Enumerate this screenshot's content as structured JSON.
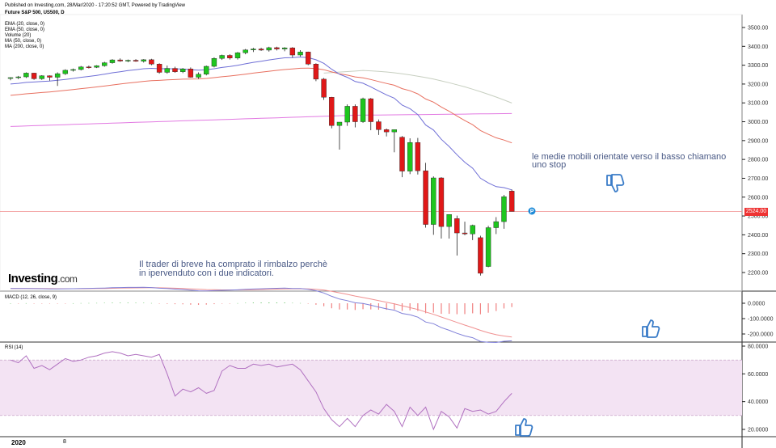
{
  "header": {
    "published": "Published on Investing.com, 28/Mar/2020 - 17:20:52 GMT, Powered by TradingView",
    "symbol": "Future S&P 500, US500, D"
  },
  "indicators_legend": [
    "EMA (20, close, 0)",
    "EMA (50, close, 0)",
    "Volume (20)",
    "MA (50, close, 0)",
    "MA (200, close, 0)"
  ],
  "annotations": {
    "top_right_line1": "le medie mobili orientate verso il basso chiamano",
    "top_right_line2": "uno stop",
    "bottom_left_line1": "Il trader di breve ha comprato il rimbalzo perchè",
    "bottom_left_line2": "in ipervenduto con i due indicatori."
  },
  "logo": {
    "text": "Investing",
    "suffix": ".com"
  },
  "colors": {
    "up": "#1ec61e",
    "down": "#e01818",
    "ema20": "#6f6fd6",
    "ema50": "#e87060",
    "ma50": "#e27ae2",
    "ma200": "#c7cfc0",
    "rsi_line": "#b070c0",
    "rsi_band": "#f3e3f3",
    "macd_line": "#8080d8",
    "signal_line": "#f09090",
    "note_text": "#4a5a86",
    "thumb": "#3a7cc8"
  },
  "icons": [
    "thumb-down-icon",
    "thumb-up-icon",
    "thumb-up-icon"
  ],
  "chart_data": {
    "type": "candlestick",
    "price_axis": {
      "ticks": [
        "3500.00",
        "3400.00",
        "3300.00",
        "3200.00",
        "3100.00",
        "3000.00",
        "2900.00",
        "2800.00",
        "2700.00",
        "2600.00",
        "2500.00",
        "2400.00",
        "2300.00",
        "2200.00"
      ],
      "range": [
        2120,
        3540
      ]
    },
    "last_price": "2524.00",
    "candles": [
      [
        3230,
        3236,
        3220,
        3234
      ],
      [
        3234,
        3243,
        3226,
        3238
      ],
      [
        3238,
        3262,
        3232,
        3258
      ],
      [
        3258,
        3260,
        3222,
        3228
      ],
      [
        3228,
        3247,
        3222,
        3244
      ],
      [
        3244,
        3246,
        3218,
        3236
      ],
      [
        3236,
        3262,
        3190,
        3255
      ],
      [
        3255,
        3278,
        3248,
        3273
      ],
      [
        3273,
        3282,
        3266,
        3277
      ],
      [
        3277,
        3296,
        3272,
        3291
      ],
      [
        3291,
        3298,
        3282,
        3289
      ],
      [
        3289,
        3300,
        3285,
        3297
      ],
      [
        3297,
        3318,
        3292,
        3313
      ],
      [
        3313,
        3332,
        3308,
        3328
      ],
      [
        3328,
        3336,
        3318,
        3322
      ],
      [
        3322,
        3330,
        3316,
        3326
      ],
      [
        3326,
        3332,
        3318,
        3321
      ],
      [
        3321,
        3332,
        3314,
        3329
      ],
      [
        3329,
        3334,
        3300,
        3306
      ],
      [
        3306,
        3310,
        3255,
        3262
      ],
      [
        3262,
        3298,
        3255,
        3283
      ],
      [
        3283,
        3292,
        3260,
        3265
      ],
      [
        3265,
        3285,
        3258,
        3280
      ],
      [
        3280,
        3288,
        3234,
        3236
      ],
      [
        3236,
        3262,
        3228,
        3252
      ],
      [
        3252,
        3298,
        3246,
        3294
      ],
      [
        3294,
        3342,
        3288,
        3336
      ],
      [
        3336,
        3356,
        3328,
        3352
      ],
      [
        3352,
        3358,
        3330,
        3338
      ],
      [
        3338,
        3370,
        3330,
        3366
      ],
      [
        3366,
        3386,
        3358,
        3381
      ],
      [
        3381,
        3392,
        3370,
        3386
      ],
      [
        3386,
        3392,
        3376,
        3380
      ],
      [
        3380,
        3398,
        3372,
        3393
      ],
      [
        3393,
        3398,
        3378,
        3386
      ],
      [
        3386,
        3396,
        3374,
        3392
      ],
      [
        3392,
        3396,
        3340,
        3354
      ],
      [
        3354,
        3380,
        3346,
        3370
      ],
      [
        3370,
        3372,
        3300,
        3306
      ],
      [
        3306,
        3310,
        3215,
        3226
      ],
      [
        3226,
        3232,
        3116,
        3130
      ],
      [
        3130,
        3132,
        2965,
        2980
      ],
      [
        2980,
        2998,
        2852,
        2998
      ],
      [
        2998,
        3092,
        2978,
        3082
      ],
      [
        3082,
        3092,
        2970,
        3000
      ],
      [
        3000,
        3128,
        2994,
        3122
      ],
      [
        3122,
        3126,
        2955,
        3000
      ],
      [
        3000,
        3012,
        2930,
        2958
      ],
      [
        2958,
        2964,
        2922,
        2946
      ],
      [
        2946,
        2950,
        2838,
        2958
      ],
      [
        2918,
        2924,
        2706,
        2738
      ],
      [
        2738,
        2912,
        2722,
        2890
      ],
      [
        2890,
        2914,
        2720,
        2740
      ],
      [
        2740,
        2782,
        2438,
        2455
      ],
      [
        2455,
        2710,
        2400,
        2702
      ],
      [
        2702,
        2706,
        2380,
        2444
      ],
      [
        2444,
        2508,
        2380,
        2508
      ],
      [
        2486,
        2502,
        2290,
        2410
      ],
      [
        2410,
        2470,
        2398,
        2405
      ],
      [
        2405,
        2454,
        2372,
        2450
      ],
      [
        2385,
        2395,
        2184,
        2196
      ],
      [
        2232,
        2448,
        2228,
        2438
      ],
      [
        2438,
        2494,
        2404,
        2470
      ],
      [
        2470,
        2612,
        2432,
        2602
      ],
      [
        2632,
        2640,
        2524,
        2524
      ]
    ],
    "macd_axis": {
      "ticks": [
        "0.0000",
        "-100.0000",
        "-200.0000"
      ]
    },
    "rsi_axis": {
      "ticks": [
        "80.0000",
        "60.0000",
        "40.0000",
        "20.0000"
      ],
      "band": [
        30,
        70
      ]
    },
    "rsi_title": "RSI (14)",
    "macd_title": "MACD (12, 26, close, 9)",
    "x_labels": [
      "2020",
      "8"
    ]
  }
}
